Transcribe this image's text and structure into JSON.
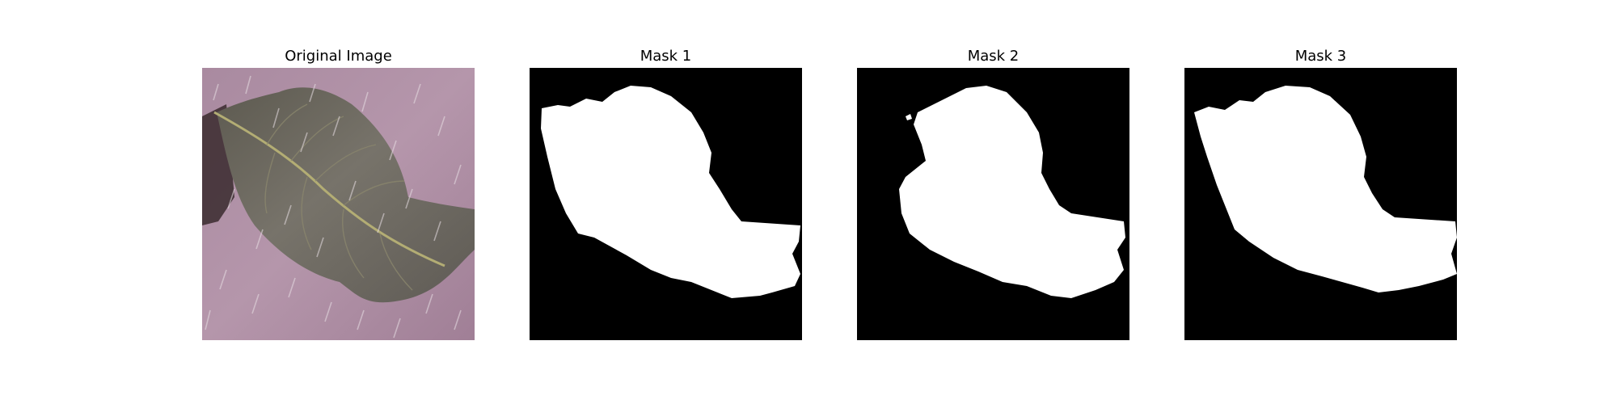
{
  "figure": {
    "panels": [
      {
        "title": "Original Image",
        "kind": "photo",
        "subject": "leaf-icon"
      },
      {
        "title": "Mask 1",
        "kind": "mask"
      },
      {
        "title": "Mask 2",
        "kind": "mask"
      },
      {
        "title": "Mask 3",
        "kind": "mask"
      }
    ],
    "colors": {
      "background": "#ffffff",
      "photo_background": "#b08fa6",
      "leaf": "#6e6a62",
      "mask_background": "#000000",
      "mask_foreground": "#ffffff"
    }
  }
}
